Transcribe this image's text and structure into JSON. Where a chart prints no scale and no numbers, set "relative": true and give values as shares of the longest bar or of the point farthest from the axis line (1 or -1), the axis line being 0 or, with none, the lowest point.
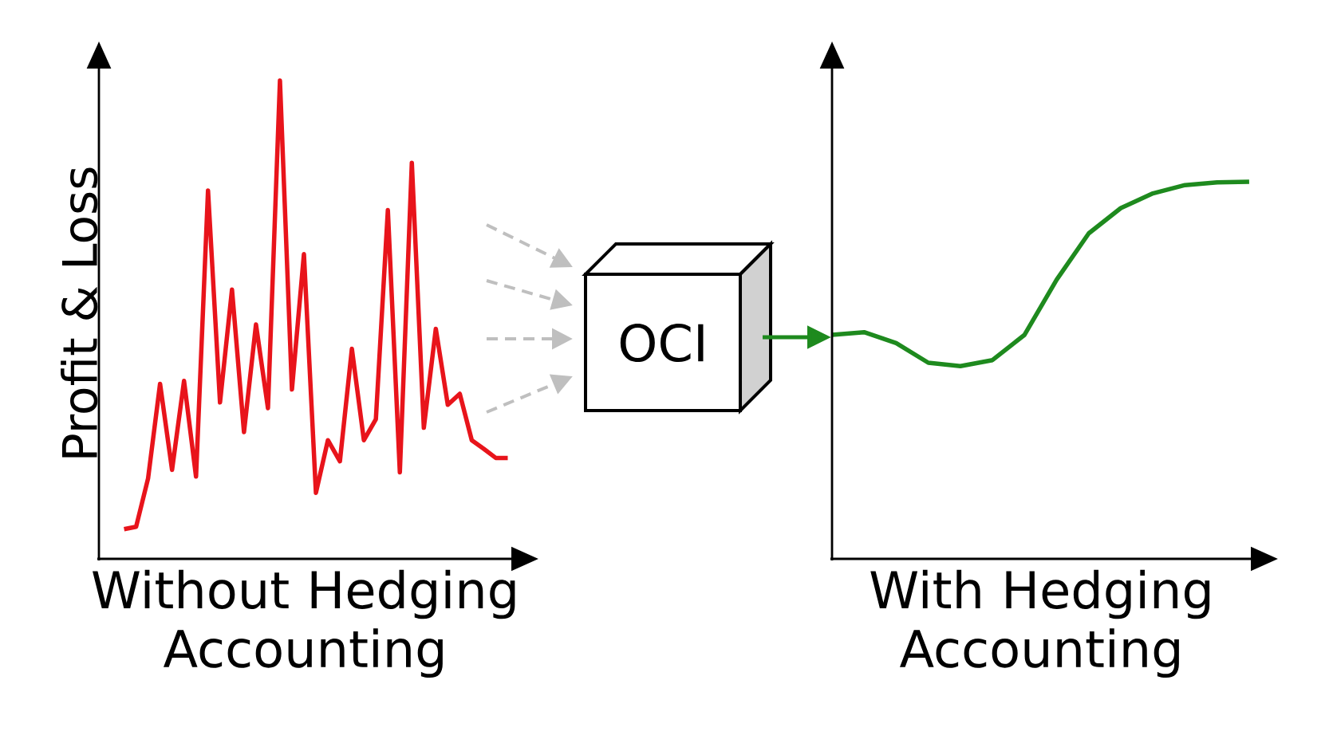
{
  "chart_data": [
    {
      "type": "line",
      "relative": true,
      "ylabel": "Profit & Loss",
      "xlabel": "Without Hedging Accounting",
      "color": "#e8141b",
      "categories": [
        null,
        null,
        null,
        null,
        null,
        null,
        null,
        null,
        null,
        null,
        null,
        null,
        null,
        null,
        null,
        null,
        null,
        null,
        null,
        null,
        null,
        null,
        null,
        null,
        null,
        null,
        null,
        null,
        null,
        null,
        null,
        null,
        null
      ],
      "values": [
        0.062,
        0.067,
        0.168,
        0.366,
        0.186,
        0.372,
        0.172,
        0.77,
        0.327,
        0.563,
        0.265,
        0.49,
        0.315,
        1.0,
        0.354,
        0.637,
        0.138,
        0.248,
        0.204,
        0.439,
        0.248,
        0.292,
        0.729,
        0.181,
        0.828,
        0.274,
        0.481,
        0.322,
        0.345,
        0.248,
        0.23,
        0.211,
        0.211
      ]
    },
    {
      "type": "other",
      "title": "OCI"
    },
    {
      "type": "line",
      "relative": true,
      "xlabel": "With Hedging Accounting",
      "color": "#1e8a1e",
      "categories": [
        null,
        null,
        null,
        null,
        null,
        null,
        null,
        null,
        null,
        null,
        null,
        null,
        null,
        null
      ],
      "values": [
        0.594,
        0.601,
        0.572,
        0.52,
        0.511,
        0.527,
        0.594,
        0.74,
        0.863,
        0.93,
        0.969,
        0.991,
        0.998,
        1.0
      ]
    }
  ]
}
